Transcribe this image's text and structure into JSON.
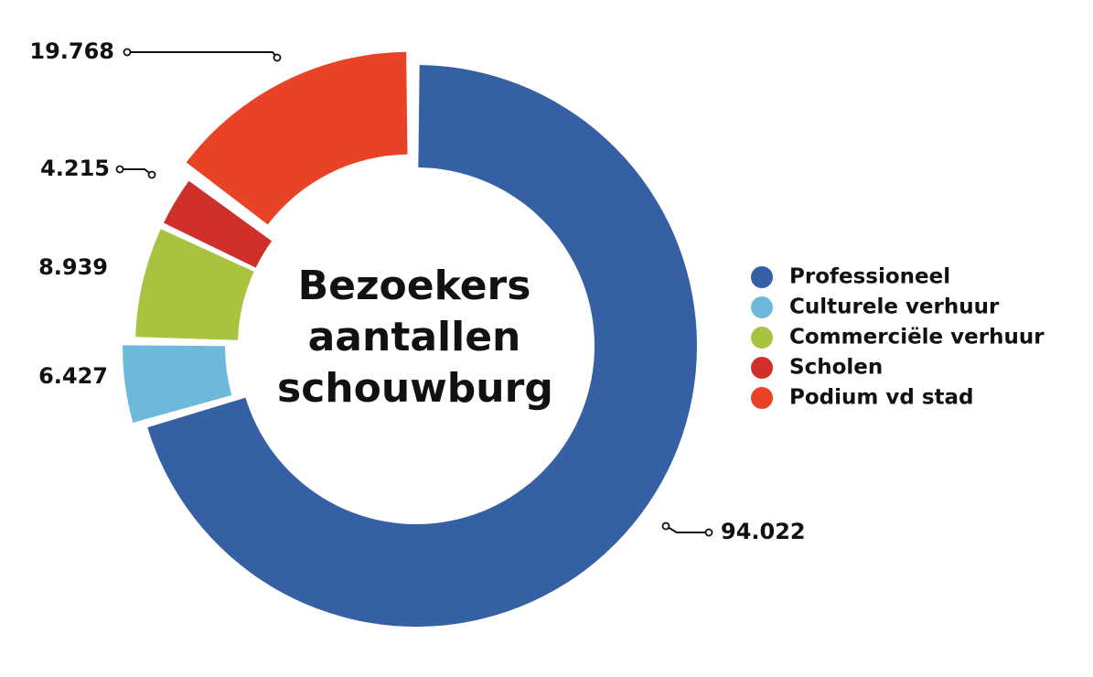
{
  "chart_data": {
    "type": "donut",
    "title": "Bezoekers aantallen schouwburg",
    "categories": [
      "Professioneel",
      "Culturele verhuur",
      "Commerciële verhuur",
      "Scholen",
      "Podium vd stad"
    ],
    "values": [
      94022,
      6427,
      8939,
      4215,
      19768
    ],
    "value_labels": [
      "94.022",
      "6.427",
      "8.939",
      "4.215",
      "19.768"
    ],
    "colors": [
      "#3560a3",
      "#6cb9d9",
      "#a8c43f",
      "#d0302a",
      "#e84227"
    ]
  }
}
